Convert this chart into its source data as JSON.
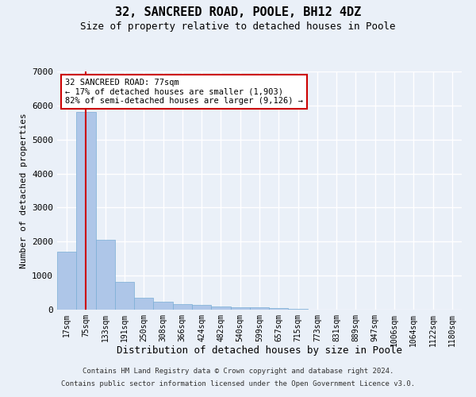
{
  "title": "32, SANCREED ROAD, POOLE, BH12 4DZ",
  "subtitle": "Size of property relative to detached houses in Poole",
  "xlabel": "Distribution of detached houses by size in Poole",
  "ylabel": "Number of detached properties",
  "categories": [
    "17sqm",
    "75sqm",
    "133sqm",
    "191sqm",
    "250sqm",
    "308sqm",
    "366sqm",
    "424sqm",
    "482sqm",
    "540sqm",
    "599sqm",
    "657sqm",
    "715sqm",
    "773sqm",
    "831sqm",
    "889sqm",
    "947sqm",
    "1006sqm",
    "1064sqm",
    "1122sqm",
    "1180sqm"
  ],
  "values": [
    1700,
    5800,
    2050,
    820,
    350,
    230,
    175,
    130,
    100,
    80,
    60,
    40,
    30,
    0,
    0,
    0,
    0,
    0,
    0,
    0,
    0
  ],
  "bar_color": "#aec6e8",
  "bar_edge_color": "#7aaed6",
  "annotation_text": "32 SANCREED ROAD: 77sqm\n← 17% of detached houses are smaller (1,903)\n82% of semi-detached houses are larger (9,126) →",
  "annotation_box_color": "#ffffff",
  "annotation_box_edge_color": "#cc0000",
  "vline_color": "#cc0000",
  "vline_x": 1.0,
  "footer_line1": "Contains HM Land Registry data © Crown copyright and database right 2024.",
  "footer_line2": "Contains public sector information licensed under the Open Government Licence v3.0.",
  "bg_color": "#eaf0f8",
  "plot_bg_color": "#eaf0f8",
  "grid_color": "#ffffff",
  "ylim": [
    0,
    7000
  ],
  "yticks": [
    0,
    1000,
    2000,
    3000,
    4000,
    5000,
    6000,
    7000
  ]
}
